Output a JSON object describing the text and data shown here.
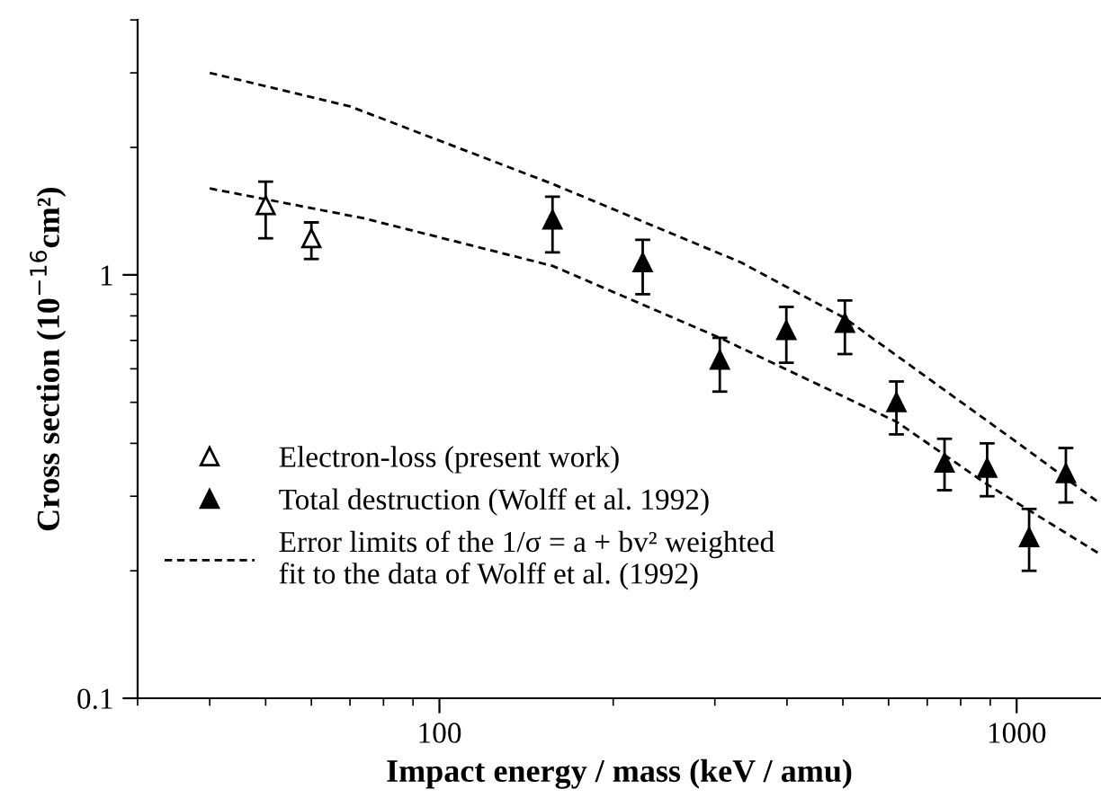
{
  "chart_data": {
    "type": "scatter",
    "xlabel": "Impact energy / mass (keV / amu)",
    "ylabel": "Cross section (10$^{−16}$cm²)",
    "log": "xy",
    "xlim": [
      30,
      1400
    ],
    "ylim": [
      0.1,
      4
    ],
    "xticks": [
      100,
      1000
    ],
    "yticks": [
      0.1,
      1
    ],
    "grid": false,
    "legend": "bottom left",
    "series": [
      {
        "name": "Electron-loss (present work)",
        "marker": "triangle_open",
        "color": "#000000",
        "x": [
          50,
          60
        ],
        "values": [
          1.46,
          1.22
        ],
        "errors": [
          [
            1.22,
            1.66
          ],
          [
            1.09,
            1.33
          ]
        ]
      },
      {
        "name": "Total destruction (Wolff et al. 1992)",
        "marker": "triangle",
        "color": "#000000",
        "x": [
          157,
          225,
          306,
          399,
          504,
          619,
          750,
          889,
          1051,
          1217
        ],
        "values": [
          1.35,
          1.07,
          0.63,
          0.74,
          0.77,
          0.5,
          0.36,
          0.35,
          0.24,
          0.34
        ],
        "errors": [
          [
            1.13,
            1.53
          ],
          [
            0.9,
            1.21
          ],
          [
            0.53,
            0.71
          ],
          [
            0.62,
            0.84
          ],
          [
            0.65,
            0.87
          ],
          [
            0.42,
            0.56
          ],
          [
            0.31,
            0.41
          ],
          [
            0.3,
            0.4
          ],
          [
            0.2,
            0.28
          ],
          [
            0.29,
            0.39
          ]
        ]
      },
      {
        "name": "Error limits of the 1/σ = a + bv² weighted\nfit to the data of Wolff et al. (1992)",
        "type": "line",
        "marker": "none",
        "line_style": "dashed",
        "color": "#000000",
        "x": [
          40,
          70,
          157,
          333,
          504,
          1033,
          1387
        ],
        "values": [
          3.0,
          2.5,
          1.64,
          1.07,
          0.79,
          0.39,
          0.29
        ]
      },
      {
        "type": "line",
        "marker": "none",
        "line_style": "dashed",
        "color": "#000000",
        "x": [
          40,
          74,
          157,
          306,
          619,
          889,
          1387
        ],
        "values": [
          1.6,
          1.36,
          1.05,
          0.71,
          0.45,
          0.32,
          0.22
        ]
      }
    ]
  }
}
